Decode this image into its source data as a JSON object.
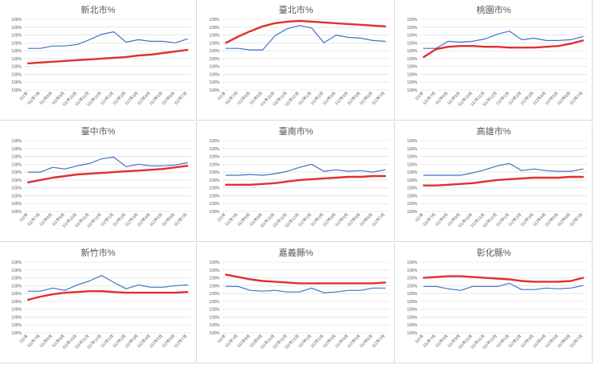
{
  "colors": {
    "series1": "#4472c4",
    "series2": "#e03030",
    "grid": "#d9d9d9",
    "text": "#595959"
  },
  "y_tick_label": "100%",
  "x_labels": [
    "111年",
    "111年7月",
    "111年8月",
    "111年9月",
    "111年10月",
    "111年11月",
    "111年12月",
    "112年1月",
    "112年2月",
    "112年3月",
    "112年4月",
    "112年5月",
    "112年6月",
    "112年7月"
  ],
  "chart_data": [
    {
      "type": "line",
      "title": "新北市%",
      "ylim": [
        0,
        9
      ],
      "series": [
        {
          "values": [
            5.3,
            5.3,
            5.6,
            5.6,
            5.8,
            6.4,
            7.1,
            7.4,
            6.1,
            6.4,
            6.2,
            6.2,
            6.0,
            6.5
          ]
        },
        {
          "values": [
            3.4,
            3.5,
            3.6,
            3.7,
            3.8,
            3.9,
            4.0,
            4.1,
            4.2,
            4.4,
            4.5,
            4.7,
            4.9,
            5.1
          ]
        }
      ]
    },
    {
      "type": "line",
      "title": "臺北市%",
      "ylim": [
        0,
        9
      ],
      "series": [
        {
          "values": [
            5.3,
            5.3,
            5.1,
            5.1,
            6.9,
            7.8,
            8.2,
            7.9,
            6.0,
            7.0,
            6.7,
            6.6,
            6.3,
            6.2
          ]
        },
        {
          "values": [
            6.0,
            6.8,
            7.5,
            8.1,
            8.5,
            8.7,
            8.8,
            8.7,
            8.6,
            8.5,
            8.4,
            8.3,
            8.2,
            8.1
          ]
        }
      ]
    },
    {
      "type": "line",
      "title": "桃園市%",
      "ylim": [
        0,
        9
      ],
      "series": [
        {
          "values": [
            5.3,
            5.3,
            6.2,
            6.1,
            6.2,
            6.5,
            7.1,
            7.5,
            6.4,
            6.6,
            6.3,
            6.3,
            6.4,
            6.8
          ]
        },
        {
          "values": [
            4.2,
            5.2,
            5.5,
            5.6,
            5.6,
            5.5,
            5.5,
            5.4,
            5.4,
            5.4,
            5.5,
            5.6,
            5.9,
            6.3
          ]
        }
      ]
    },
    {
      "type": "line",
      "title": "臺中市%",
      "ylim": [
        0,
        9
      ],
      "series": [
        {
          "values": [
            5.0,
            5.0,
            5.6,
            5.4,
            5.8,
            6.1,
            6.7,
            6.9,
            5.7,
            6.0,
            5.8,
            5.8,
            5.9,
            6.2
          ]
        },
        {
          "values": [
            3.7,
            4.0,
            4.3,
            4.5,
            4.7,
            4.8,
            4.9,
            5.0,
            5.1,
            5.2,
            5.3,
            5.4,
            5.6,
            5.8
          ]
        }
      ]
    },
    {
      "type": "line",
      "title": "臺南市%",
      "ylim": [
        0,
        9
      ],
      "series": [
        {
          "values": [
            4.6,
            4.6,
            4.7,
            4.6,
            4.8,
            5.1,
            5.6,
            6.0,
            5.1,
            5.3,
            5.1,
            5.2,
            5.0,
            5.3
          ]
        },
        {
          "values": [
            3.4,
            3.4,
            3.4,
            3.5,
            3.6,
            3.8,
            4.0,
            4.1,
            4.2,
            4.3,
            4.4,
            4.4,
            4.5,
            4.5
          ]
        }
      ]
    },
    {
      "type": "line",
      "title": "高雄市%",
      "ylim": [
        0,
        9
      ],
      "series": [
        {
          "values": [
            4.6,
            4.6,
            4.6,
            4.6,
            4.9,
            5.3,
            5.8,
            6.1,
            5.2,
            5.4,
            5.2,
            5.1,
            5.1,
            5.4
          ]
        },
        {
          "values": [
            3.3,
            3.3,
            3.4,
            3.5,
            3.6,
            3.8,
            4.0,
            4.1,
            4.2,
            4.3,
            4.3,
            4.3,
            4.4,
            4.4
          ]
        }
      ]
    },
    {
      "type": "line",
      "title": "新竹市%",
      "ylim": [
        0,
        9
      ],
      "series": [
        {
          "values": [
            5.3,
            5.3,
            5.7,
            5.4,
            6.1,
            6.6,
            7.3,
            6.4,
            5.6,
            6.1,
            5.8,
            5.8,
            6.0,
            6.1
          ]
        },
        {
          "values": [
            4.2,
            4.6,
            4.9,
            5.1,
            5.2,
            5.3,
            5.3,
            5.2,
            5.1,
            5.1,
            5.1,
            5.1,
            5.1,
            5.2
          ]
        }
      ]
    },
    {
      "type": "line",
      "title": "嘉義縣%",
      "ylim": [
        0,
        9
      ],
      "series": [
        {
          "values": [
            5.9,
            5.9,
            5.4,
            5.3,
            5.4,
            5.2,
            5.2,
            5.7,
            5.1,
            5.2,
            5.4,
            5.4,
            5.7,
            5.7
          ]
        },
        {
          "values": [
            7.4,
            7.1,
            6.8,
            6.6,
            6.5,
            6.4,
            6.3,
            6.3,
            6.3,
            6.3,
            6.3,
            6.3,
            6.3,
            6.4
          ]
        }
      ]
    },
    {
      "type": "line",
      "title": "彰化縣%",
      "ylim": [
        0,
        9
      ],
      "series": [
        {
          "values": [
            5.9,
            5.9,
            5.6,
            5.4,
            5.9,
            5.9,
            5.9,
            6.3,
            5.5,
            5.5,
            5.7,
            5.6,
            5.7,
            6.0
          ]
        },
        {
          "values": [
            7.0,
            7.1,
            7.2,
            7.2,
            7.1,
            7.0,
            6.9,
            6.8,
            6.6,
            6.5,
            6.5,
            6.5,
            6.6,
            7.0
          ]
        }
      ]
    }
  ]
}
